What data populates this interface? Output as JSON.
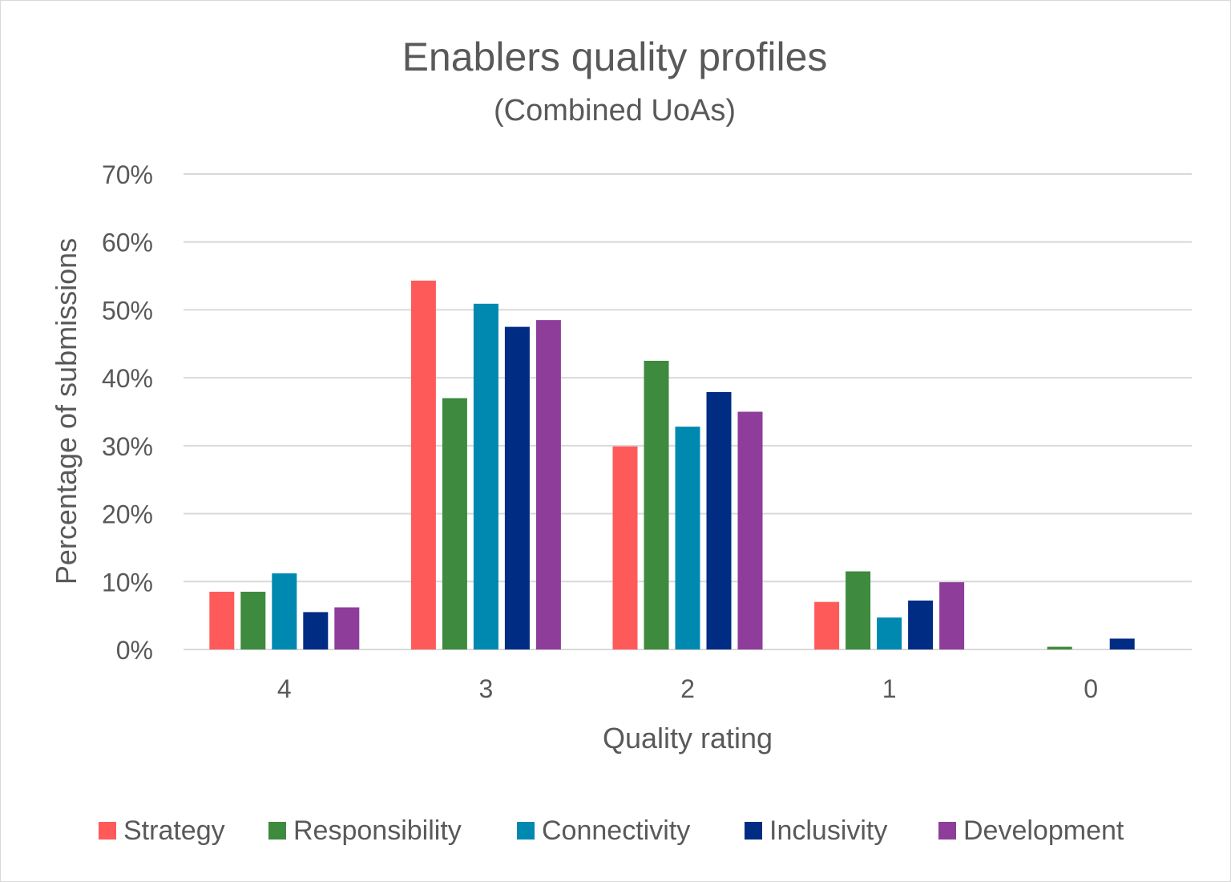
{
  "chart_data": {
    "type": "bar",
    "title": "Enablers quality profiles",
    "subtitle": "(Combined UoAs)",
    "xlabel": "Quality rating",
    "ylabel": "Percentage of submissions",
    "categories": [
      "4",
      "3",
      "2",
      "1",
      "0"
    ],
    "ylim": [
      0,
      70
    ],
    "yticks": [
      0,
      10,
      20,
      30,
      40,
      50,
      60,
      70
    ],
    "ytick_labels": [
      "0%",
      "10%",
      "20%",
      "30%",
      "40%",
      "50%",
      "60%",
      "70%"
    ],
    "grid": true,
    "legend_position": "bottom",
    "series": [
      {
        "name": "Strategy",
        "color": "#ff5a5a",
        "values": [
          8.5,
          54.3,
          29.9,
          7.0,
          0.0
        ]
      },
      {
        "name": "Responsibility",
        "color": "#3e8a3e",
        "values": [
          8.5,
          37.0,
          42.5,
          11.5,
          0.4
        ]
      },
      {
        "name": "Connectivity",
        "color": "#0089b0",
        "values": [
          11.2,
          50.9,
          32.8,
          4.7,
          0.0
        ]
      },
      {
        "name": "Inclusivity",
        "color": "#002c84",
        "values": [
          5.5,
          47.5,
          37.9,
          7.2,
          1.6
        ]
      },
      {
        "name": "Development",
        "color": "#8e3d9a",
        "values": [
          6.2,
          48.5,
          35.0,
          9.9,
          0.0
        ]
      }
    ]
  }
}
